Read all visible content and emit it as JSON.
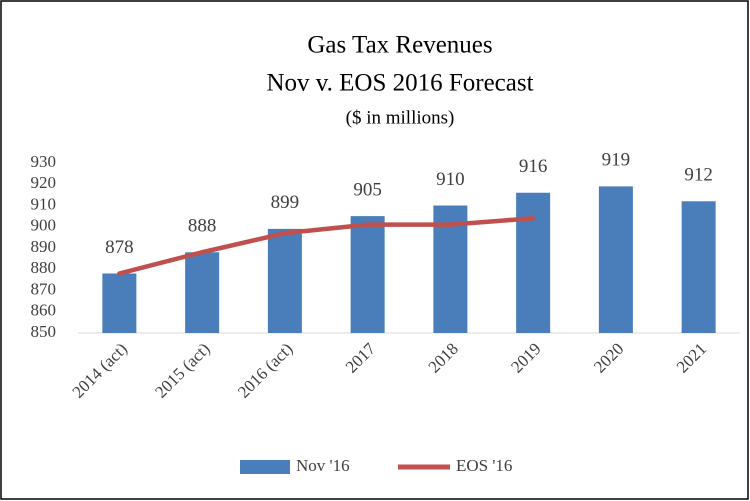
{
  "chart_data": {
    "type": "bar_line",
    "title": [
      "Gas Tax Revenues",
      "Nov v. EOS 2016 Forecast",
      "($ in millions)"
    ],
    "categories": [
      "2014 (act)",
      "2015 (act)",
      "2016 (act)",
      "2017",
      "2018",
      "2019",
      "2020",
      "2021"
    ],
    "series": [
      {
        "name": "Nov '16",
        "type": "bar",
        "color": "#4a7ebb",
        "values": [
          878,
          888,
          899,
          905,
          910,
          916,
          919,
          912
        ]
      },
      {
        "name": "EOS '16",
        "type": "line",
        "color": "#c0504d",
        "values": [
          878,
          888,
          897,
          901,
          901,
          904,
          null,
          null
        ]
      }
    ],
    "ylim": [
      850,
      930
    ],
    "yticks": [
      850,
      860,
      870,
      880,
      890,
      900,
      910,
      920,
      930
    ],
    "grid": false,
    "legend": "bottom"
  }
}
